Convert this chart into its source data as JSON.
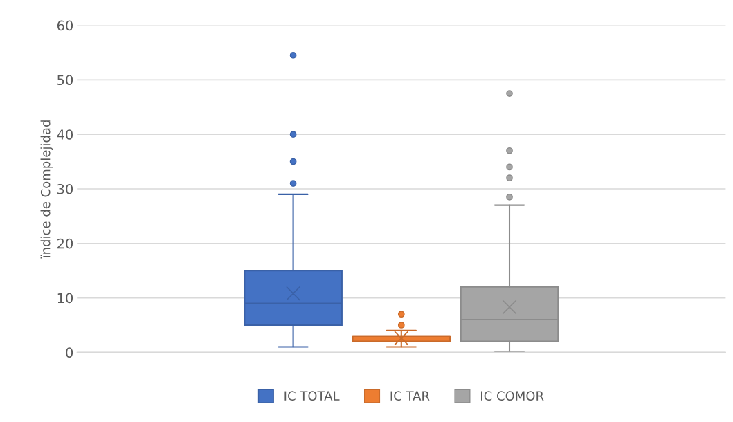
{
  "chart_data": {
    "type": "box",
    "ylabel": "ïndice de Complejidad",
    "categories": [
      null
    ],
    "series": [
      {
        "name": "IC TOTAL",
        "color": "#4472c4",
        "boxes": [
          {
            "low": 1,
            "q1": 5,
            "median": 9,
            "q3": 15,
            "high": 29,
            "mean": 10.8,
            "outliers": [
              31,
              35,
              40,
              54.5
            ]
          }
        ]
      },
      {
        "name": "IC TAR",
        "color": "#ed7d31",
        "boxes": [
          {
            "low": 1,
            "q1": 2,
            "median": 3,
            "q3": 3,
            "high": 4,
            "mean": 2.6,
            "outliers": [
              5,
              7
            ]
          }
        ]
      },
      {
        "name": "IC COMOR",
        "color": "#a5a5a5",
        "boxes": [
          {
            "low": 0,
            "q1": 2,
            "median": 6,
            "q3": 12,
            "high": 27,
            "mean": 8.3,
            "outliers": [
              28.5,
              32,
              34,
              37,
              47.5
            ]
          }
        ]
      }
    ],
    "ylim": [
      0,
      60
    ],
    "yticks": [
      0,
      10,
      20,
      30,
      40,
      50,
      60
    ],
    "grid": "y",
    "legend": "bottom"
  }
}
